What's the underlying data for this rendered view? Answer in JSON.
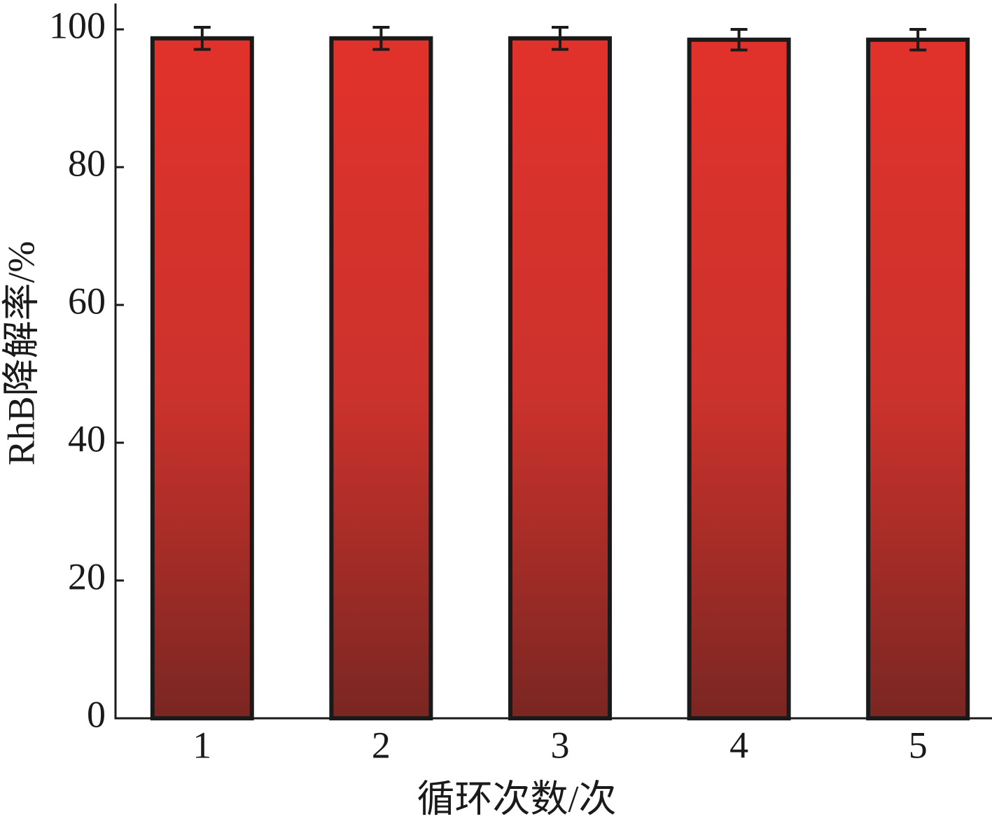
{
  "chart_data": {
    "type": "bar",
    "x_label": "循环次数/次",
    "y_label": "RhB降解率/%",
    "categories": [
      "1",
      "2",
      "3",
      "4",
      "5"
    ],
    "values": [
      98.7,
      98.7,
      98.7,
      98.5,
      98.5
    ],
    "errors": [
      1.6,
      1.6,
      1.6,
      1.5,
      1.5
    ],
    "color": "#e3322b",
    "ylim": [
      0,
      104
    ],
    "yticks": [
      0,
      20,
      40,
      60,
      80,
      100
    ],
    "grid": false
  }
}
